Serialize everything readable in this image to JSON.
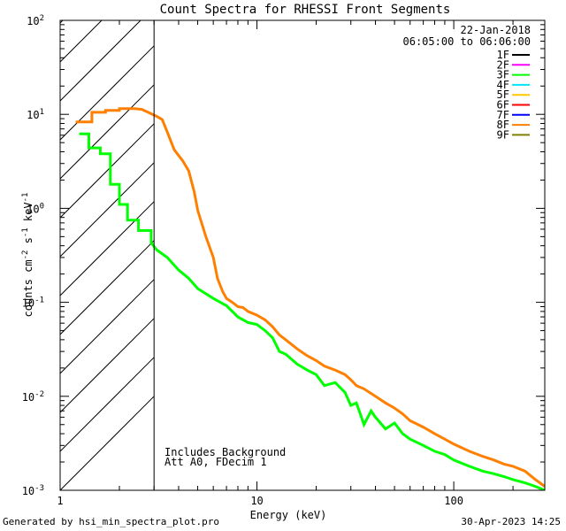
{
  "chart_data": {
    "type": "line",
    "title": "Count Spectra for RHESSI Front Segments",
    "xlabel": "Energy (keV)",
    "ylabel_parts": [
      "counts cm",
      "-2",
      " s",
      "-1",
      " keV",
      "-1"
    ],
    "xscale": "log",
    "yscale": "log",
    "xlim": [
      1,
      290
    ],
    "ylim": [
      0.001,
      100
    ],
    "x_ticks": [
      {
        "value": 1,
        "label": "1"
      },
      {
        "value": 10,
        "label": "10"
      },
      {
        "value": 100,
        "label": "100"
      }
    ],
    "y_ticks": [
      {
        "value": 0.001,
        "base": "10",
        "exp": "-3"
      },
      {
        "value": 0.01,
        "base": "10",
        "exp": "-2"
      },
      {
        "value": 0.1,
        "base": "10",
        "exp": "-1"
      },
      {
        "value": 1,
        "base": "10",
        "exp": "0"
      },
      {
        "value": 10,
        "base": "10",
        "exp": "1"
      },
      {
        "value": 100,
        "base": "10",
        "exp": "2"
      }
    ],
    "hatched_region_keV": [
      1,
      3
    ],
    "legend": {
      "header": [
        "22-Jan-2018",
        "06:05:00 to 06:06:00"
      ],
      "position": "top-right",
      "entries": [
        {
          "label": "1F",
          "color": "#000000"
        },
        {
          "label": "2F",
          "color": "#ff00ff"
        },
        {
          "label": "3F",
          "color": "#00ff00"
        },
        {
          "label": "4F",
          "color": "#00e5ff"
        },
        {
          "label": "5F",
          "color": "#ffc800"
        },
        {
          "label": "6F",
          "color": "#ff0000"
        },
        {
          "label": "7F",
          "color": "#0000ff"
        },
        {
          "label": "8F",
          "color": "#ff8000"
        },
        {
          "label": "9F",
          "color": "#808000"
        }
      ]
    },
    "annotations": [
      "Includes Background",
      "Att A0, FDecim 1"
    ],
    "series": [
      {
        "name": "3F",
        "color": "#00ff00",
        "points": [
          [
            1.25,
            6.2
          ],
          [
            1.4,
            6.2
          ],
          [
            1.4,
            4.4
          ],
          [
            1.6,
            4.4
          ],
          [
            1.6,
            3.8
          ],
          [
            1.8,
            3.8
          ],
          [
            1.8,
            1.8
          ],
          [
            2.0,
            1.8
          ],
          [
            2.0,
            1.1
          ],
          [
            2.2,
            1.1
          ],
          [
            2.2,
            0.75
          ],
          [
            2.5,
            0.75
          ],
          [
            2.5,
            0.58
          ],
          [
            2.9,
            0.58
          ],
          [
            2.9,
            0.43
          ],
          [
            3.1,
            0.36
          ],
          [
            3.5,
            0.3
          ],
          [
            4.0,
            0.22
          ],
          [
            4.5,
            0.18
          ],
          [
            5.0,
            0.14
          ],
          [
            6.0,
            0.11
          ],
          [
            7.0,
            0.092
          ],
          [
            8.0,
            0.07
          ],
          [
            9.0,
            0.061
          ],
          [
            10.0,
            0.058
          ],
          [
            11.0,
            0.05
          ],
          [
            12.0,
            0.042
          ],
          [
            13.0,
            0.03
          ],
          [
            14.0,
            0.028
          ],
          [
            16.0,
            0.022
          ],
          [
            18.0,
            0.019
          ],
          [
            20.0,
            0.017
          ],
          [
            22.0,
            0.013
          ],
          [
            25.0,
            0.014
          ],
          [
            28.0,
            0.011
          ],
          [
            30.0,
            0.008
          ],
          [
            32.0,
            0.0085
          ],
          [
            35.0,
            0.005
          ],
          [
            38.0,
            0.007
          ],
          [
            40.0,
            0.006
          ],
          [
            45.0,
            0.0045
          ],
          [
            50.0,
            0.0052
          ],
          [
            55.0,
            0.004
          ],
          [
            60.0,
            0.0035
          ],
          [
            70.0,
            0.003
          ],
          [
            80.0,
            0.0026
          ],
          [
            90.0,
            0.0024
          ],
          [
            100.0,
            0.0021
          ],
          [
            120.0,
            0.0018
          ],
          [
            140.0,
            0.0016
          ],
          [
            160.0,
            0.0015
          ],
          [
            180.0,
            0.0014
          ],
          [
            200.0,
            0.0013
          ],
          [
            230.0,
            0.0012
          ],
          [
            260.0,
            0.0011
          ],
          [
            290.0,
            0.001
          ]
        ]
      },
      {
        "name": "8F",
        "color": "#ff8000",
        "points": [
          [
            1.2,
            8.3
          ],
          [
            1.45,
            8.3
          ],
          [
            1.45,
            10.5
          ],
          [
            1.7,
            10.5
          ],
          [
            1.7,
            11.0
          ],
          [
            2.0,
            11.0
          ],
          [
            2.0,
            11.5
          ],
          [
            2.4,
            11.5
          ],
          [
            2.6,
            11.3
          ],
          [
            2.8,
            10.5
          ],
          [
            3.1,
            9.5
          ],
          [
            3.3,
            8.8
          ],
          [
            3.5,
            6.5
          ],
          [
            3.8,
            4.2
          ],
          [
            4.2,
            3.2
          ],
          [
            4.5,
            2.5
          ],
          [
            4.8,
            1.5
          ],
          [
            5.0,
            0.95
          ],
          [
            5.5,
            0.5
          ],
          [
            6.0,
            0.3
          ],
          [
            6.3,
            0.18
          ],
          [
            6.7,
            0.13
          ],
          [
            7.0,
            0.11
          ],
          [
            7.5,
            0.1
          ],
          [
            8.0,
            0.09
          ],
          [
            8.5,
            0.088
          ],
          [
            9.0,
            0.08
          ],
          [
            10.0,
            0.073
          ],
          [
            11.0,
            0.065
          ],
          [
            12.0,
            0.055
          ],
          [
            13.0,
            0.045
          ],
          [
            14.0,
            0.04
          ],
          [
            16.0,
            0.032
          ],
          [
            18.0,
            0.027
          ],
          [
            20.0,
            0.024
          ],
          [
            22.0,
            0.021
          ],
          [
            25.0,
            0.019
          ],
          [
            28.0,
            0.017
          ],
          [
            30.0,
            0.015
          ],
          [
            32.0,
            0.013
          ],
          [
            35.0,
            0.012
          ],
          [
            40.0,
            0.01
          ],
          [
            45.0,
            0.0085
          ],
          [
            50.0,
            0.0075
          ],
          [
            55.0,
            0.0065
          ],
          [
            60.0,
            0.0055
          ],
          [
            70.0,
            0.0047
          ],
          [
            80.0,
            0.004
          ],
          [
            90.0,
            0.0035
          ],
          [
            100.0,
            0.0031
          ],
          [
            120.0,
            0.0026
          ],
          [
            140.0,
            0.0023
          ],
          [
            160.0,
            0.0021
          ],
          [
            180.0,
            0.0019
          ],
          [
            200.0,
            0.0018
          ],
          [
            230.0,
            0.0016
          ],
          [
            260.0,
            0.0013
          ],
          [
            290.0,
            0.0011
          ]
        ]
      }
    ]
  },
  "footer": {
    "left": "Generated by hsi_min_spectra_plot.pro",
    "right": "30-Apr-2023 14:25"
  }
}
